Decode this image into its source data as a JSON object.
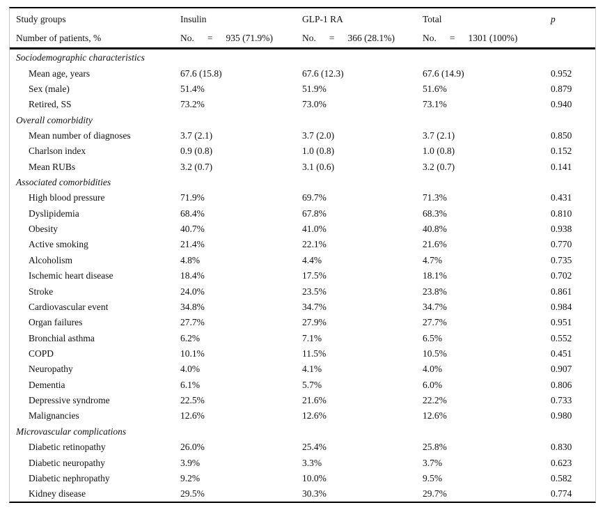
{
  "table": {
    "header": {
      "study_groups_label": "Study groups",
      "patients_label": "Number of patients, %",
      "p_label": "p",
      "groups": [
        {
          "name": "Insulin",
          "no_label": "No.",
          "eq": "=",
          "count": "935 (71.9%)"
        },
        {
          "name": "GLP-1 RA",
          "no_label": "No.",
          "eq": "=",
          "count": "366 (28.1%)"
        },
        {
          "name": "Total",
          "no_label": "No.",
          "eq": "=",
          "count": "1301 (100%)"
        }
      ]
    },
    "rows": [
      {
        "type": "section",
        "label": "Sociodemographic characteristics",
        "insulin": "",
        "glp1": "",
        "total": "",
        "p": ""
      },
      {
        "type": "item",
        "label": "Mean age, years",
        "insulin": "67.6 (15.8)",
        "glp1": "67.6 (12.3)",
        "total": "67.6 (14.9)",
        "p": "0.952"
      },
      {
        "type": "item",
        "label": "Sex (male)",
        "insulin": "51.4%",
        "glp1": "51.9%",
        "total": "51.6%",
        "p": "0.879"
      },
      {
        "type": "item",
        "label": "Retired, SS",
        "insulin": "73.2%",
        "glp1": "73.0%",
        "total": "73.1%",
        "p": "0.940"
      },
      {
        "type": "section",
        "label": "Overall comorbidity",
        "insulin": "",
        "glp1": "",
        "total": "",
        "p": ""
      },
      {
        "type": "item",
        "label": "Mean number of diagnoses",
        "insulin": "3.7 (2.1)",
        "glp1": "3.7 (2.0)",
        "total": "3.7 (2.1)",
        "p": "0.850"
      },
      {
        "type": "item",
        "label": "Charlson index",
        "insulin": "0.9 (0.8)",
        "glp1": "1.0 (0.8)",
        "total": "1.0 (0.8)",
        "p": "0.152"
      },
      {
        "type": "item",
        "label": "Mean RUBs",
        "insulin": "3.2 (0.7)",
        "glp1": "3.1 (0.6)",
        "total": "3.2 (0.7)",
        "p": "0.141"
      },
      {
        "type": "section",
        "label": "Associated comorbidities",
        "insulin": "",
        "glp1": "",
        "total": "",
        "p": ""
      },
      {
        "type": "item",
        "label": "High blood pressure",
        "insulin": "71.9%",
        "glp1": "69.7%",
        "total": "71.3%",
        "p": "0.431"
      },
      {
        "type": "item",
        "label": "Dyslipidemia",
        "insulin": "68.4%",
        "glp1": "67.8%",
        "total": "68.3%",
        "p": "0.810"
      },
      {
        "type": "item",
        "label": "Obesity",
        "insulin": "40.7%",
        "glp1": "41.0%",
        "total": "40.8%",
        "p": "0.938"
      },
      {
        "type": "item",
        "label": "Active smoking",
        "insulin": "21.4%",
        "glp1": "22.1%",
        "total": "21.6%",
        "p": "0.770"
      },
      {
        "type": "item",
        "label": "Alcoholism",
        "insulin": "4.8%",
        "glp1": "4.4%",
        "total": "4.7%",
        "p": "0.735"
      },
      {
        "type": "item",
        "label": "Ischemic heart disease",
        "insulin": "18.4%",
        "glp1": "17.5%",
        "total": "18.1%",
        "p": "0.702"
      },
      {
        "type": "item",
        "label": "Stroke",
        "insulin": "24.0%",
        "glp1": "23.5%",
        "total": "23.8%",
        "p": "0.861"
      },
      {
        "type": "item",
        "label": "Cardiovascular event",
        "insulin": "34.8%",
        "glp1": "34.7%",
        "total": "34.7%",
        "p": "0.984"
      },
      {
        "type": "item",
        "label": "Organ failures",
        "insulin": "27.7%",
        "glp1": "27.9%",
        "total": "27.7%",
        "p": "0.951"
      },
      {
        "type": "item",
        "label": "Bronchial asthma",
        "insulin": "6.2%",
        "glp1": "7.1%",
        "total": "6.5%",
        "p": "0.552"
      },
      {
        "type": "item",
        "label": "COPD",
        "insulin": "10.1%",
        "glp1": "11.5%",
        "total": "10.5%",
        "p": "0.451"
      },
      {
        "type": "item",
        "label": "Neuropathy",
        "insulin": "4.0%",
        "glp1": "4.1%",
        "total": "4.0%",
        "p": "0.907"
      },
      {
        "type": "item",
        "label": "Dementia",
        "insulin": "6.1%",
        "glp1": "5.7%",
        "total": "6.0%",
        "p": "0.806"
      },
      {
        "type": "item",
        "label": "Depressive syndrome",
        "insulin": "22.5%",
        "glp1": "21.6%",
        "total": "22.2%",
        "p": "0.733"
      },
      {
        "type": "item",
        "label": "Malignancies",
        "insulin": "12.6%",
        "glp1": "12.6%",
        "total": "12.6%",
        "p": "0.980"
      },
      {
        "type": "section",
        "label": "Microvascular complications",
        "insulin": "",
        "glp1": "",
        "total": "",
        "p": ""
      },
      {
        "type": "item",
        "label": "Diabetic retinopathy",
        "insulin": "26.0%",
        "glp1": "25.4%",
        "total": "25.8%",
        "p": "0.830"
      },
      {
        "type": "item",
        "label": "Diabetic neuropathy",
        "insulin": "3.9%",
        "glp1": "3.3%",
        "total": "3.7%",
        "p": "0.623"
      },
      {
        "type": "item",
        "label": "Diabetic nephropathy",
        "insulin": "9.2%",
        "glp1": "10.0%",
        "total": "9.5%",
        "p": "0.582"
      },
      {
        "type": "item",
        "label": "Kidney disease",
        "insulin": "29.5%",
        "glp1": "30.3%",
        "total": "29.7%",
        "p": "0.774"
      }
    ]
  },
  "colors": {
    "rule": "#000000",
    "frame_border": "#c9c9c9",
    "text": "#111111",
    "background": "#ffffff"
  }
}
